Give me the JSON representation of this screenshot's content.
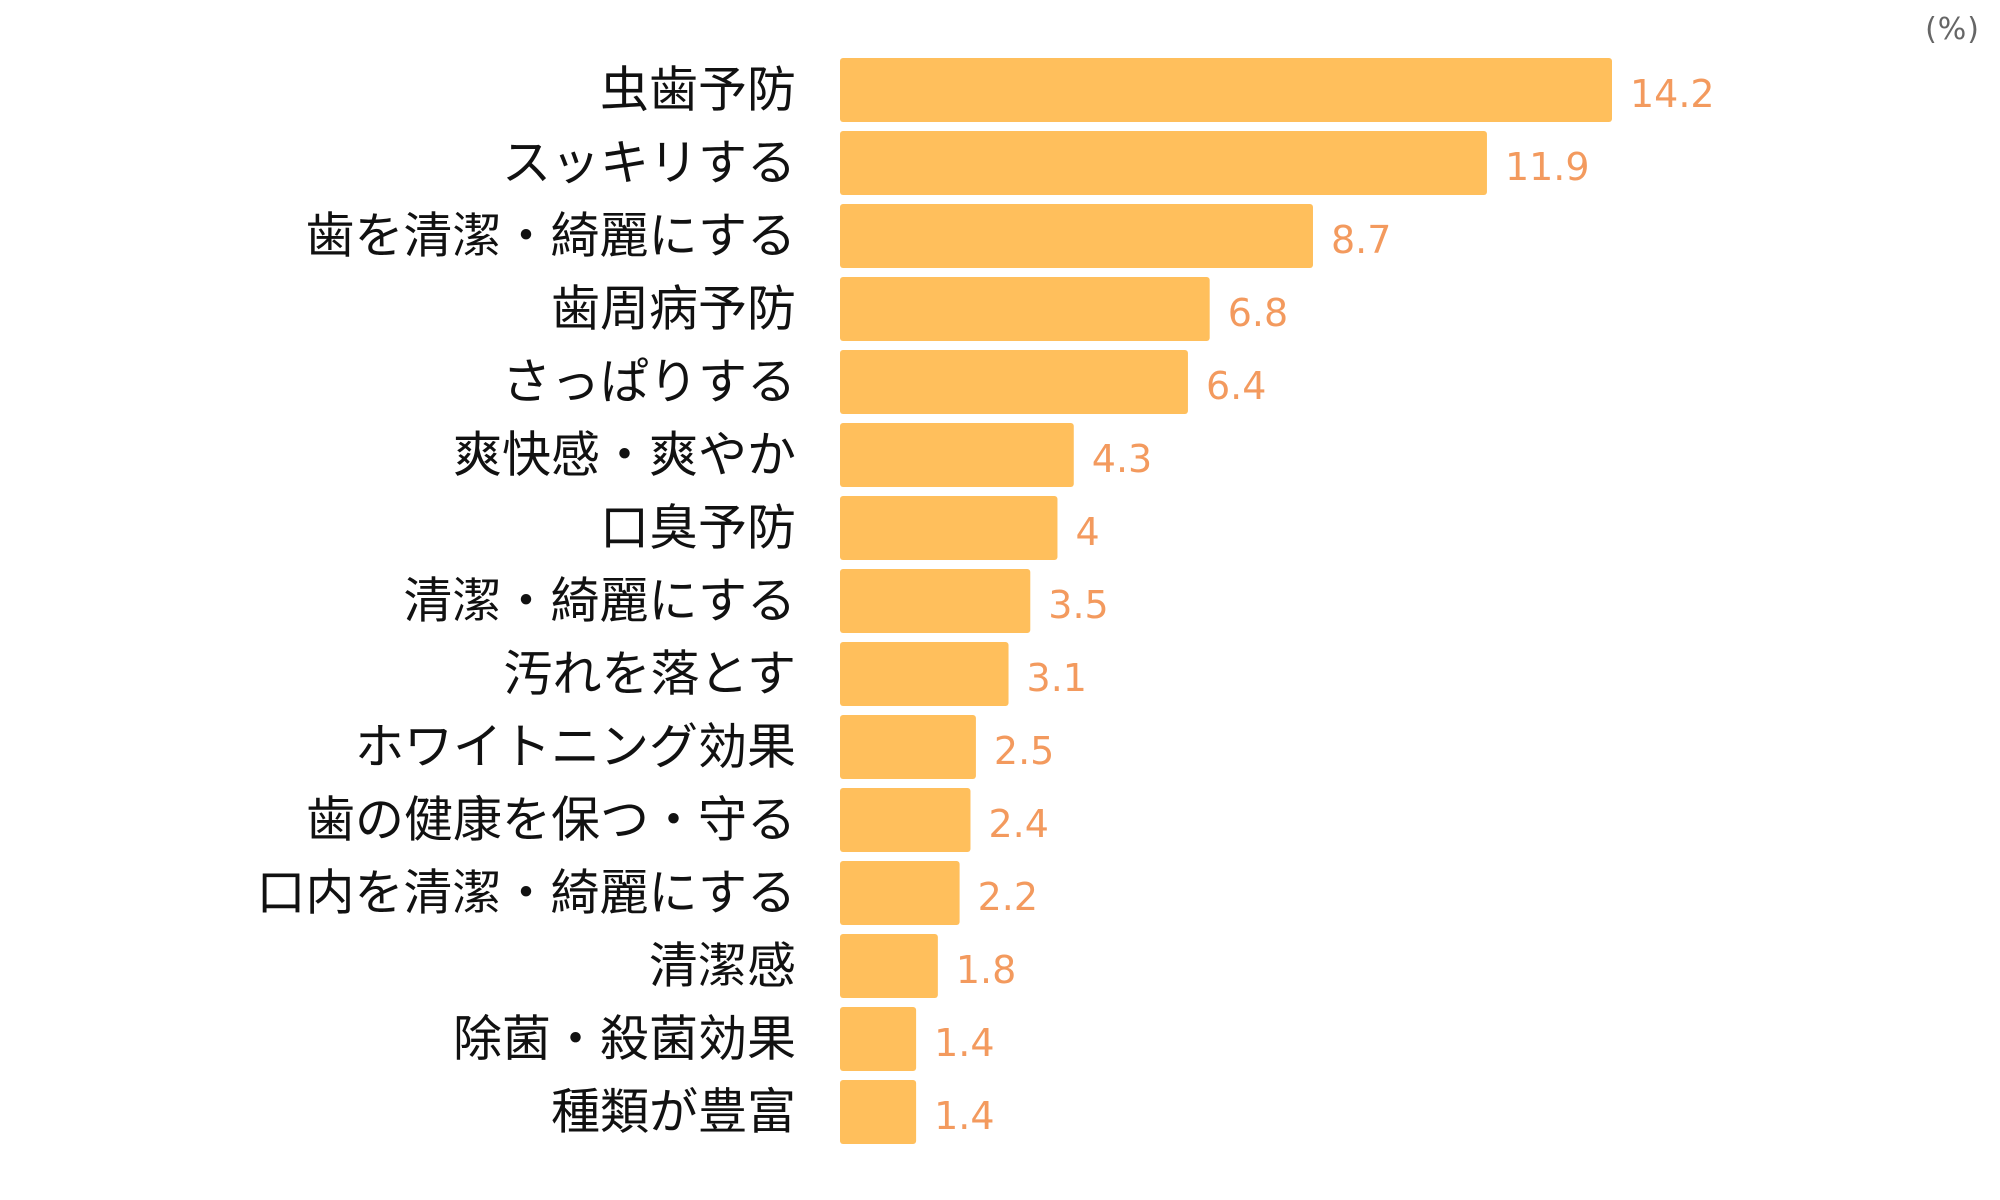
{
  "chart_data": {
    "type": "bar",
    "orientation": "horizontal",
    "unit": "(%)",
    "categories": [
      "虫歯予防",
      "スッキリする",
      "歯を清潔・綺麗にする",
      "歯周病予防",
      "さっぱりする",
      "爽快感・爽やか",
      "口臭予防",
      "清潔・綺麗にする",
      "汚れを落とす",
      "ホワイトニング効果",
      "歯の健康を保つ・守る",
      "口内を清潔・綺麗にする",
      "清潔感",
      "除菌・殺菌効果",
      "種類が豊富"
    ],
    "values": [
      14.2,
      11.9,
      8.7,
      6.8,
      6.4,
      4.3,
      4,
      3.5,
      3.1,
      2.5,
      2.4,
      2.2,
      1.8,
      1.4,
      1.4
    ],
    "xlim": [
      0,
      14.2
    ],
    "grid": false,
    "legend": "none",
    "colors": {
      "bar": "#FFBF5C",
      "value_label": "#F39A5E",
      "category_label": "#111111"
    }
  }
}
